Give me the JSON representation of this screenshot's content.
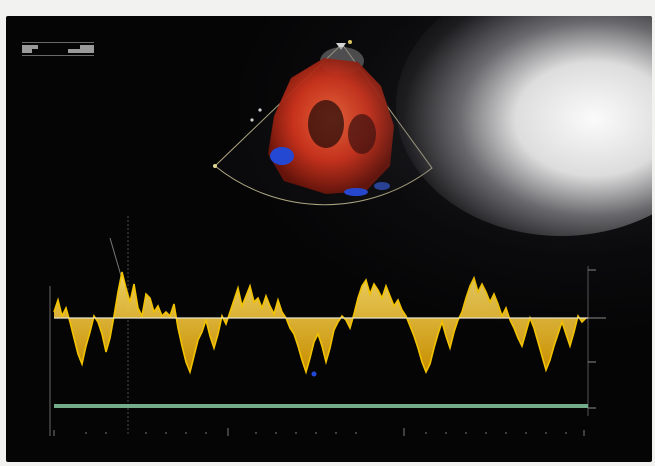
{
  "scene": {
    "background": "#f2f2f0",
    "screen_color": "#050506"
  },
  "colors": {
    "doppler_trace": "#f2c200",
    "doppler_trace_dark": "#d49a00",
    "baseline": "#e8e4c8",
    "timeline": "#7fbf9a",
    "color_flow_red": "#d8331a",
    "color_flow_blue": "#2448d8",
    "sector_outline": "#d9d0a0"
  },
  "icons": {
    "sector": "ultrasound-sector-icon",
    "doppler": "doppler-spectrum-icon"
  }
}
